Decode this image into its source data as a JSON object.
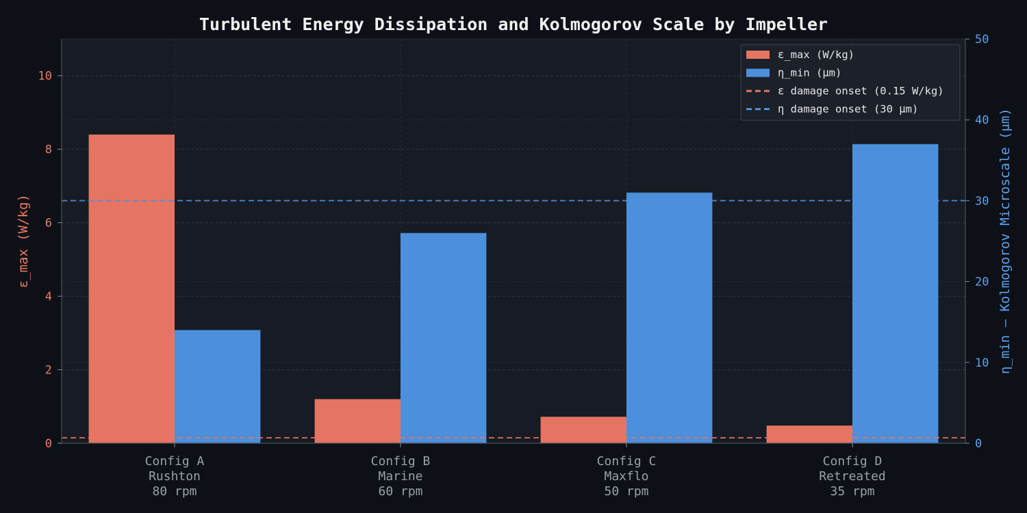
{
  "chart_data": {
    "type": "bar",
    "title": "Turbulent Energy Dissipation and Kolmogorov Scale by Impeller",
    "categories": [
      [
        "Config A",
        "Rushton",
        "80 rpm"
      ],
      [
        "Config B",
        "Marine",
        "60 rpm"
      ],
      [
        "Config C",
        "Maxflo",
        "50 rpm"
      ],
      [
        "Config D",
        "Retreated",
        "35 rpm"
      ]
    ],
    "y_left": {
      "label": "ε_max (W/kg)",
      "lim": [
        0,
        11
      ],
      "ticks": [
        0,
        2,
        4,
        6,
        8,
        10
      ],
      "color": "#f07b63"
    },
    "y_right": {
      "label": "η_min — Kolmogorov Microscale (μm)",
      "lim": [
        0,
        50
      ],
      "ticks": [
        0,
        10,
        20,
        30,
        40,
        50
      ],
      "color": "#5aa2ee"
    },
    "series": [
      {
        "name": "ε_max (W/kg)",
        "axis": "left",
        "color": "#e57562",
        "values": [
          8.4,
          1.2,
          0.72,
          0.48
        ]
      },
      {
        "name": "η_min (μm)",
        "axis": "right",
        "color": "#4c90dc",
        "values": [
          14.0,
          26.0,
          31.0,
          37.0
        ]
      }
    ],
    "reference_lines": [
      {
        "name": "ε damage onset (0.15 W/kg)",
        "axis": "left",
        "value": 0.15,
        "color": "#e57562"
      },
      {
        "name": "η damage onset (30 μm)",
        "axis": "right",
        "value": 30,
        "color": "#4c90dc"
      }
    ],
    "grid": true,
    "legend": "top-right"
  }
}
